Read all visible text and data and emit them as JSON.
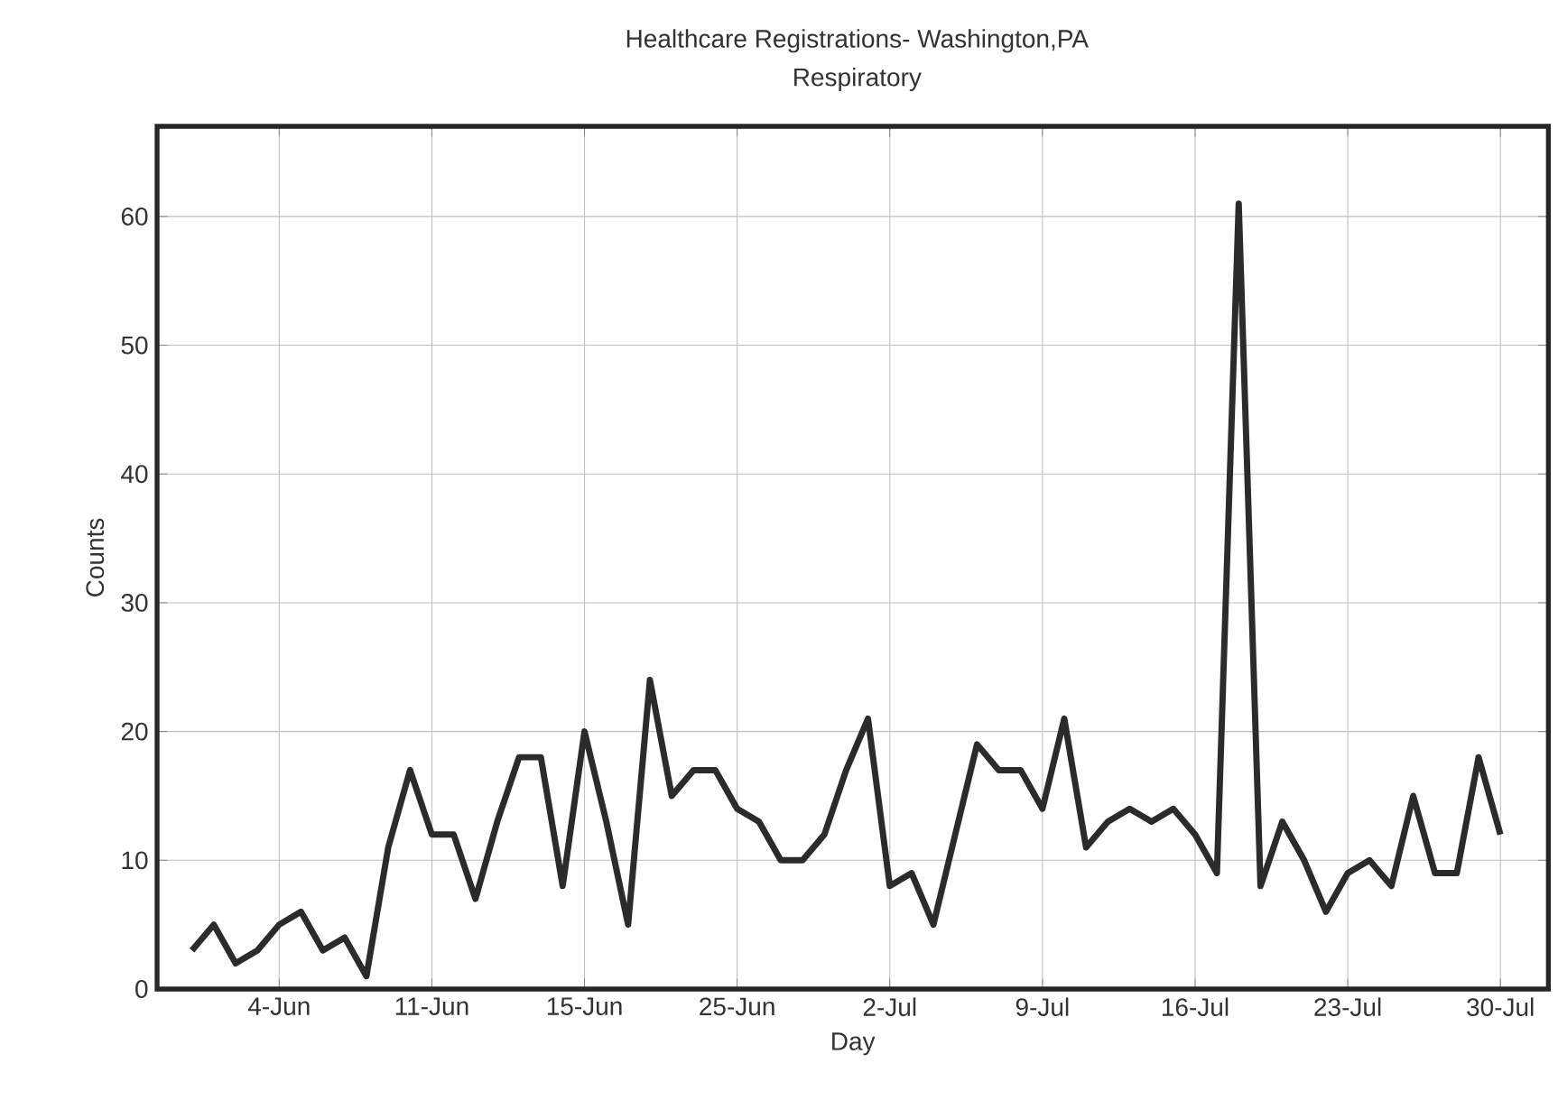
{
  "chart_data": {
    "type": "line",
    "title": "Healthcare Registrations- Washington,PA",
    "subtitle": "Respiratory",
    "xlabel": "Day",
    "ylabel": "Counts",
    "categories": [
      null,
      null,
      null,
      null,
      "4-Jun",
      null,
      null,
      null,
      null,
      null,
      null,
      "11-Jun",
      null,
      null,
      null,
      null,
      null,
      null,
      "15-Jun",
      null,
      null,
      null,
      null,
      null,
      null,
      "25-Jun",
      null,
      null,
      null,
      null,
      null,
      null,
      "2-Jul",
      null,
      null,
      null,
      null,
      null,
      null,
      "9-Jul",
      null,
      null,
      null,
      null,
      null,
      null,
      "16-Jul",
      null,
      null,
      null,
      null,
      null,
      null,
      "23-Jul",
      null,
      null,
      null,
      null,
      null,
      null,
      "30-Jul"
    ],
    "series": [
      {
        "color": "#2b2b2b",
        "values": [
          3,
          5,
          2,
          3,
          5,
          6,
          3,
          4,
          1,
          11,
          17,
          12,
          12,
          7,
          13,
          18,
          18,
          8,
          20,
          13,
          5,
          24,
          15,
          17,
          17,
          14,
          13,
          10,
          10,
          12,
          17,
          21,
          8,
          9,
          5,
          12,
          19,
          17,
          17,
          14,
          21,
          11,
          13,
          14,
          13,
          14,
          12,
          9,
          61,
          8,
          13,
          10,
          6,
          9,
          10,
          8,
          15,
          9,
          9,
          18,
          12
        ]
      }
    ],
    "ylim": [
      0,
      67
    ],
    "yticks": [
      0,
      10,
      20,
      30,
      40,
      50,
      60
    ],
    "grid": true,
    "line_style": "solid",
    "marker": "none"
  }
}
